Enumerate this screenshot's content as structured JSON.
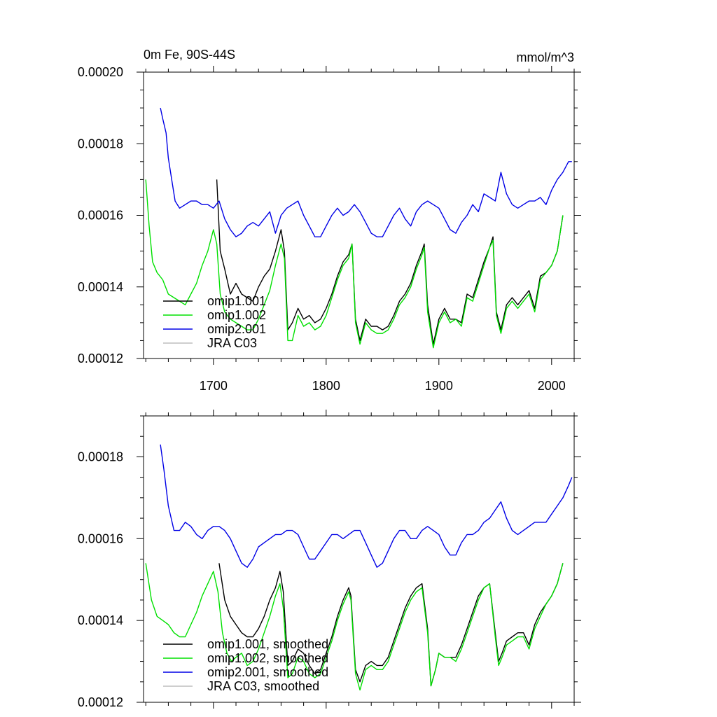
{
  "chart_data": [
    {
      "type": "line",
      "title": "0m Fe, 90S-44S",
      "units": "mmol/m^3",
      "xlabel": "",
      "ylabel": "",
      "xlim": [
        1638,
        2020
      ],
      "ylim": [
        0.00012,
        0.0002
      ],
      "x_ticks": [
        "1700",
        "1800",
        "1900",
        "2000"
      ],
      "y_ticks": [
        "0.00012",
        "0.00014",
        "0.00016",
        "0.00018",
        "0.00020"
      ],
      "legend_position": "bottom-left",
      "series": [
        {
          "name": "omip1.001",
          "color": "#000000",
          "x": [
            1703,
            1706,
            1710,
            1715,
            1720,
            1725,
            1730,
            1735,
            1740,
            1745,
            1750,
            1755,
            1760,
            1763,
            1766,
            1770,
            1775,
            1780,
            1785,
            1790,
            1795,
            1800,
            1805,
            1810,
            1815,
            1820,
            1823,
            1826,
            1830,
            1835,
            1840,
            1845,
            1850,
            1855,
            1860,
            1865,
            1870,
            1875,
            1880,
            1885,
            1887,
            1890,
            1895,
            1900,
            1905,
            1910,
            1915,
            1920,
            1925,
            1930,
            1935,
            1940,
            1945,
            1948,
            1951,
            1955,
            1960,
            1965,
            1970,
            1975,
            1980,
            1985,
            1990,
            1995,
            2000,
            2005,
            2010
          ],
          "y": [
            0.00017,
            0.00015,
            0.000145,
            0.000138,
            0.000141,
            0.000138,
            0.000137,
            0.000136,
            0.00014,
            0.000143,
            0.000145,
            0.00015,
            0.000156,
            0.00015,
            0.000128,
            0.00013,
            0.000134,
            0.000131,
            0.000132,
            0.00013,
            0.000131,
            0.000134,
            0.000138,
            0.000143,
            0.000147,
            0.000149,
            0.000152,
            0.000131,
            0.000125,
            0.000131,
            0.000129,
            0.000129,
            0.000128,
            0.000129,
            0.000132,
            0.000136,
            0.000138,
            0.000141,
            0.000146,
            0.00015,
            0.000152,
            0.000135,
            0.000124,
            0.000131,
            0.000134,
            0.000131,
            0.000131,
            0.00013,
            0.000138,
            0.000137,
            0.000142,
            0.000147,
            0.000151,
            0.000154,
            0.000133,
            0.000128,
            0.000135,
            0.000137,
            0.000135,
            0.000137,
            0.000139,
            0.000134,
            0.000143,
            0.000144,
            0.000146,
            0.00015,
            0.00016
          ]
        },
        {
          "name": "omip1.002",
          "color": "#00e000",
          "x": [
            1640,
            1643,
            1646,
            1650,
            1655,
            1660,
            1665,
            1670,
            1675,
            1680,
            1685,
            1690,
            1695,
            1700,
            1703,
            1706,
            1710,
            1715,
            1720,
            1725,
            1730,
            1735,
            1740,
            1745,
            1750,
            1755,
            1760,
            1763,
            1766,
            1770,
            1775,
            1780,
            1785,
            1790,
            1795,
            1800,
            1805,
            1810,
            1815,
            1820,
            1823,
            1826,
            1830,
            1835,
            1840,
            1845,
            1850,
            1855,
            1860,
            1865,
            1870,
            1875,
            1880,
            1885,
            1887,
            1890,
            1895,
            1900,
            1905,
            1910,
            1915,
            1920,
            1925,
            1930,
            1935,
            1940,
            1945,
            1948,
            1951,
            1955,
            1960,
            1965,
            1970,
            1975,
            1980,
            1985,
            1990,
            1995,
            2000,
            2005,
            2010
          ],
          "y": [
            0.00017,
            0.000157,
            0.000147,
            0.000144,
            0.000142,
            0.000138,
            0.000137,
            0.000136,
            0.000135,
            0.000138,
            0.000141,
            0.000146,
            0.00015,
            0.000156,
            0.000152,
            0.000138,
            0.000133,
            0.000131,
            0.00013,
            0.000129,
            0.000128,
            0.000128,
            0.000131,
            0.000135,
            0.000139,
            0.000146,
            0.000152,
            0.000148,
            0.000125,
            0.000125,
            0.000132,
            0.000129,
            0.00013,
            0.000128,
            0.000129,
            0.000132,
            0.000137,
            0.000142,
            0.000146,
            0.000148,
            0.000152,
            0.00013,
            0.000124,
            0.00013,
            0.000128,
            0.000127,
            0.000127,
            0.000128,
            0.000131,
            0.000135,
            0.000137,
            0.00014,
            0.000145,
            0.000149,
            0.000151,
            0.000133,
            0.000123,
            0.00013,
            0.000133,
            0.00013,
            0.000131,
            0.000129,
            0.000137,
            0.000136,
            0.000141,
            0.000146,
            0.000151,
            0.000153,
            0.000132,
            0.000127,
            0.000134,
            0.000136,
            0.000134,
            0.000136,
            0.000138,
            0.000133,
            0.000142,
            0.000144,
            0.000146,
            0.00015,
            0.00016
          ]
        },
        {
          "name": "omip2.001",
          "color": "#0000e6",
          "x": [
            1653,
            1655,
            1658,
            1660,
            1663,
            1666,
            1670,
            1675,
            1680,
            1685,
            1690,
            1695,
            1700,
            1705,
            1710,
            1715,
            1720,
            1725,
            1730,
            1735,
            1740,
            1745,
            1750,
            1755,
            1760,
            1765,
            1770,
            1775,
            1780,
            1785,
            1790,
            1795,
            1800,
            1805,
            1810,
            1815,
            1820,
            1825,
            1830,
            1835,
            1840,
            1845,
            1850,
            1855,
            1860,
            1865,
            1870,
            1875,
            1880,
            1885,
            1890,
            1895,
            1900,
            1905,
            1910,
            1915,
            1920,
            1925,
            1930,
            1935,
            1940,
            1945,
            1950,
            1955,
            1960,
            1965,
            1970,
            1975,
            1980,
            1985,
            1990,
            1995,
            2000,
            2005,
            2010,
            2015,
            2018
          ],
          "y": [
            0.00019,
            0.000187,
            0.000183,
            0.000176,
            0.00017,
            0.000164,
            0.000162,
            0.000163,
            0.000164,
            0.000164,
            0.000163,
            0.000163,
            0.000162,
            0.000164,
            0.000159,
            0.000156,
            0.000154,
            0.000155,
            0.000157,
            0.000158,
            0.000157,
            0.000159,
            0.000161,
            0.000155,
            0.00016,
            0.000162,
            0.000163,
            0.000164,
            0.00016,
            0.000157,
            0.000154,
            0.000154,
            0.000157,
            0.00016,
            0.000162,
            0.00016,
            0.000161,
            0.000163,
            0.000161,
            0.000158,
            0.000155,
            0.000154,
            0.000154,
            0.000157,
            0.00016,
            0.000162,
            0.000159,
            0.000157,
            0.000161,
            0.000163,
            0.000164,
            0.000163,
            0.000162,
            0.000159,
            0.000156,
            0.000155,
            0.000158,
            0.00016,
            0.000163,
            0.000161,
            0.000166,
            0.000165,
            0.000164,
            0.000172,
            0.000166,
            0.000163,
            0.000162,
            0.000163,
            0.000164,
            0.000164,
            0.000165,
            0.000163,
            0.000167,
            0.00017,
            0.000172,
            0.000175,
            0.000175
          ]
        },
        {
          "name": "JRA C03",
          "color": "#bdbdbd",
          "x": [],
          "y": []
        }
      ]
    },
    {
      "type": "line",
      "title": "",
      "xlabel": "",
      "ylabel": "",
      "xlim": [
        1638,
        2020
      ],
      "ylim": [
        0.00012,
        0.00019
      ],
      "x_ticks": [],
      "y_ticks": [
        "0.00012",
        "0.00014",
        "0.00016",
        "0.00018"
      ],
      "legend_position": "bottom-left",
      "series": [
        {
          "name": "omip1.001, smoothed",
          "color": "#000000",
          "x": [
            1705,
            1710,
            1715,
            1720,
            1725,
            1730,
            1735,
            1740,
            1745,
            1750,
            1755,
            1759,
            1762,
            1766,
            1770,
            1775,
            1780,
            1785,
            1790,
            1795,
            1800,
            1805,
            1810,
            1815,
            1820,
            1822,
            1826,
            1830,
            1835,
            1840,
            1845,
            1850,
            1855,
            1860,
            1865,
            1870,
            1875,
            1880,
            1885,
            1890,
            1893,
            1897,
            1900,
            1905,
            1910,
            1915,
            1920,
            1925,
            1930,
            1935,
            1940,
            1945,
            1950,
            1953,
            1956,
            1960,
            1965,
            1970,
            1975,
            1980,
            1985,
            1990,
            1995,
            2000,
            2005,
            2010
          ],
          "y": [
            0.000154,
            0.000145,
            0.000141,
            0.000139,
            0.000137,
            0.000136,
            0.000136,
            0.000138,
            0.000141,
            0.000145,
            0.000148,
            0.000152,
            0.000147,
            0.000129,
            0.00013,
            0.000133,
            0.000132,
            0.000129,
            0.000127,
            0.000128,
            0.000132,
            0.000136,
            0.000141,
            0.000145,
            0.000148,
            0.000146,
            0.000128,
            0.000125,
            0.000129,
            0.00013,
            0.000129,
            0.000129,
            0.000131,
            0.000135,
            0.000139,
            0.000143,
            0.000146,
            0.000148,
            0.000149,
            0.000138,
            0.000124,
            0.000128,
            0.000132,
            0.000131,
            0.000131,
            0.000131,
            0.000134,
            0.000138,
            0.000142,
            0.000146,
            0.000148,
            0.000149,
            0.000137,
            0.00013,
            0.000132,
            0.000135,
            0.000136,
            0.000137,
            0.000137,
            0.000134,
            0.000139,
            0.000142,
            0.000144,
            0.000146,
            0.000149,
            0.000154
          ]
        },
        {
          "name": "omip1.002, smoothed",
          "color": "#00e000",
          "x": [
            1640,
            1645,
            1650,
            1655,
            1660,
            1665,
            1670,
            1675,
            1680,
            1685,
            1690,
            1695,
            1700,
            1704,
            1708,
            1712,
            1716,
            1720,
            1725,
            1730,
            1735,
            1740,
            1745,
            1750,
            1755,
            1759,
            1762,
            1766,
            1770,
            1775,
            1780,
            1785,
            1790,
            1795,
            1800,
            1805,
            1810,
            1815,
            1820,
            1822,
            1826,
            1830,
            1835,
            1840,
            1845,
            1850,
            1855,
            1860,
            1865,
            1870,
            1875,
            1880,
            1885,
            1890,
            1893,
            1897,
            1900,
            1905,
            1910,
            1915,
            1920,
            1925,
            1930,
            1935,
            1940,
            1945,
            1950,
            1953,
            1956,
            1960,
            1965,
            1970,
            1975,
            1980,
            1985,
            1990,
            1995,
            2000,
            2005,
            2010
          ],
          "y": [
            0.000154,
            0.000145,
            0.000141,
            0.00014,
            0.000139,
            0.000137,
            0.000136,
            0.000136,
            0.000139,
            0.000142,
            0.000146,
            0.000149,
            0.000152,
            0.000147,
            0.000137,
            0.000132,
            0.00013,
            0.000131,
            0.000132,
            0.000129,
            0.00013,
            0.000133,
            0.000137,
            0.000141,
            0.000146,
            0.000149,
            0.000143,
            0.000126,
            0.000127,
            0.000131,
            0.00013,
            0.000127,
            0.000126,
            0.000127,
            0.000131,
            0.000135,
            0.00014,
            0.000144,
            0.000147,
            0.000145,
            0.000127,
            0.000123,
            0.000128,
            0.000129,
            0.000128,
            0.000128,
            0.00013,
            0.000134,
            0.000138,
            0.000142,
            0.000145,
            0.000147,
            0.000148,
            0.000137,
            0.000124,
            0.000128,
            0.000132,
            0.000131,
            0.000131,
            0.00013,
            0.000133,
            0.000137,
            0.000141,
            0.000145,
            0.000148,
            0.000149,
            0.000136,
            0.000129,
            0.000131,
            0.000134,
            0.000135,
            0.000136,
            0.000136,
            0.000133,
            0.000138,
            0.000141,
            0.000144,
            0.000146,
            0.000149,
            0.000154
          ]
        },
        {
          "name": "omip2.001, smoothed",
          "color": "#0000e6",
          "x": [
            1653,
            1656,
            1660,
            1665,
            1670,
            1675,
            1680,
            1685,
            1690,
            1695,
            1700,
            1705,
            1710,
            1715,
            1720,
            1725,
            1730,
            1735,
            1740,
            1745,
            1750,
            1755,
            1760,
            1765,
            1770,
            1775,
            1780,
            1785,
            1790,
            1795,
            1800,
            1805,
            1810,
            1815,
            1820,
            1825,
            1830,
            1835,
            1840,
            1845,
            1850,
            1855,
            1860,
            1865,
            1870,
            1875,
            1880,
            1885,
            1890,
            1895,
            1900,
            1905,
            1910,
            1915,
            1920,
            1925,
            1930,
            1935,
            1940,
            1945,
            1950,
            1955,
            1960,
            1965,
            1970,
            1975,
            1980,
            1985,
            1990,
            1995,
            2000,
            2005,
            2010,
            2015,
            2018
          ],
          "y": [
            0.000183,
            0.000177,
            0.000168,
            0.000162,
            0.000162,
            0.000164,
            0.000163,
            0.000161,
            0.00016,
            0.000162,
            0.000163,
            0.000163,
            0.000162,
            0.00016,
            0.000157,
            0.000154,
            0.000153,
            0.000155,
            0.000158,
            0.000159,
            0.00016,
            0.000161,
            0.000161,
            0.000162,
            0.000162,
            0.000161,
            0.000158,
            0.000155,
            0.000155,
            0.000157,
            0.000159,
            0.000161,
            0.000161,
            0.00016,
            0.000161,
            0.000162,
            0.000162,
            0.000159,
            0.000156,
            0.000153,
            0.000154,
            0.000157,
            0.00016,
            0.000162,
            0.000162,
            0.00016,
            0.00016,
            0.000162,
            0.000163,
            0.000162,
            0.000161,
            0.000158,
            0.000156,
            0.000156,
            0.000159,
            0.000161,
            0.000161,
            0.000162,
            0.000164,
            0.000165,
            0.000167,
            0.000169,
            0.000165,
            0.000162,
            0.000161,
            0.000162,
            0.000163,
            0.000164,
            0.000164,
            0.000164,
            0.000166,
            0.000168,
            0.00017,
            0.000173,
            0.000175
          ]
        },
        {
          "name": "JRA C03, smoothed",
          "color": "#bdbdbd",
          "x": [],
          "y": []
        }
      ]
    }
  ]
}
